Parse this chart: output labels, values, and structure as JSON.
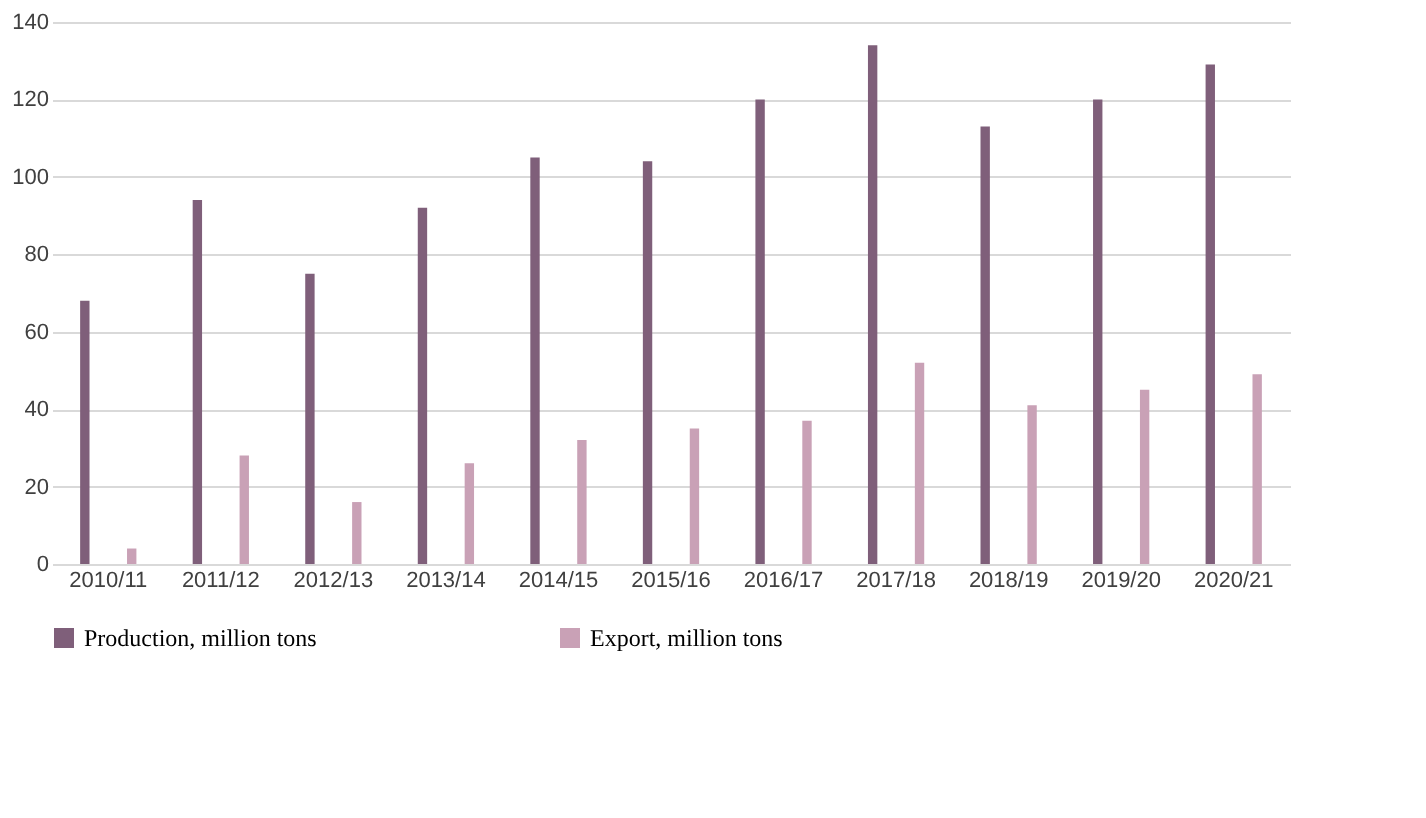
{
  "chart_data": {
    "type": "bar",
    "categories": [
      "2010/11",
      "2011/12",
      "2012/13",
      "2013/14",
      "2014/15",
      "2015/16",
      "2016/17",
      "2017/18",
      "2018/19",
      "2019/20",
      "2020/21"
    ],
    "series": [
      {
        "name": "Production, million tons",
        "color": "#7f5f7a",
        "values": [
          68,
          94,
          75,
          92,
          105,
          104,
          120,
          134,
          113,
          120,
          129
        ]
      },
      {
        "name": "Export, million tons",
        "color": "#c9a1b6",
        "values": [
          4,
          28,
          16,
          26,
          32,
          35,
          37,
          52,
          41,
          45,
          49
        ]
      }
    ],
    "ylim": [
      0,
      140
    ],
    "yticks": [
      0,
      20,
      40,
      60,
      80,
      100,
      120,
      140
    ],
    "grid": "y",
    "legend": "bottom"
  }
}
